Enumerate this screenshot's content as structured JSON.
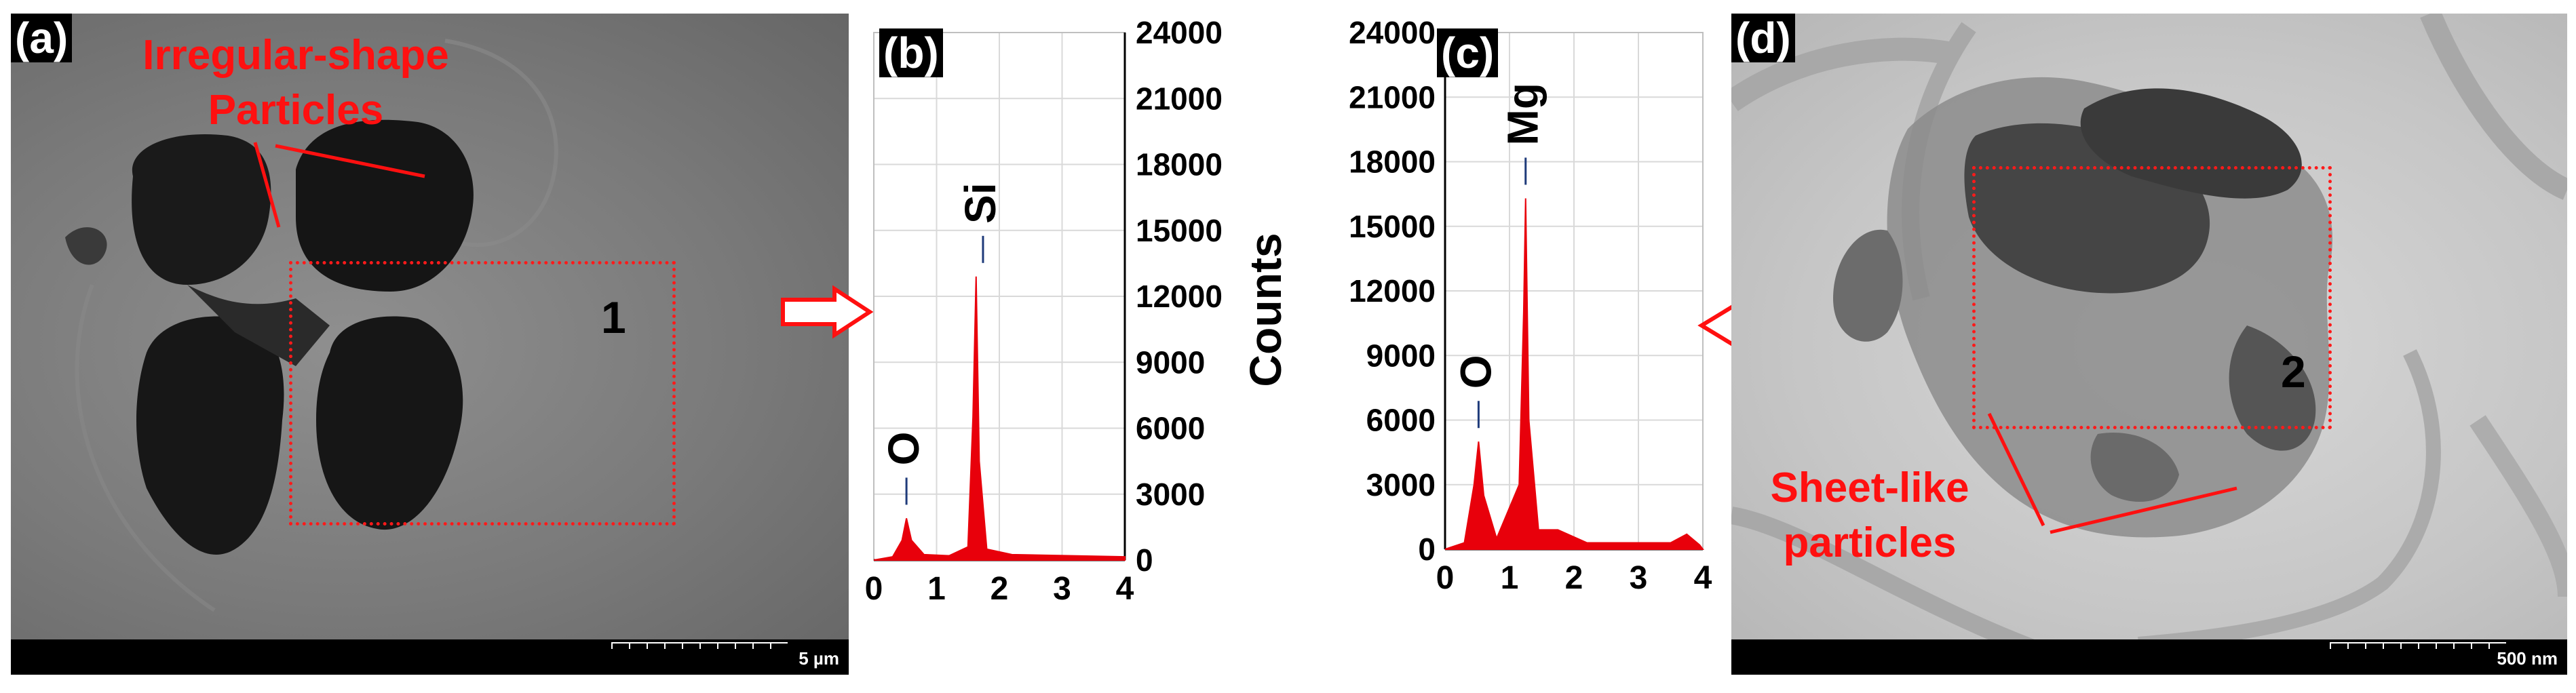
{
  "panel_a": {
    "letter": "(a)",
    "annotation_line1": "Irregular-shape",
    "annotation_line2": "Particles",
    "region_number": "1",
    "scale_bar": "5 µm"
  },
  "panel_d": {
    "letter": "(d)",
    "annotation_line1": "Sheet-like",
    "annotation_line2": "particles",
    "region_number": "2",
    "scale_bar": "500 nm"
  },
  "colors": {
    "spectrum": "#e8000b",
    "annotation": "#ff1010",
    "grid": "#d9d9d9"
  },
  "chart_data": [
    {
      "panel": "(b)",
      "type": "area",
      "ylabel": "Counts",
      "y_axis_side": "right",
      "xlim": [
        0,
        4
      ],
      "ylim": [
        0,
        24000
      ],
      "xticks": [
        0,
        1,
        2,
        3,
        4
      ],
      "yticks": [
        0,
        3000,
        6000,
        9000,
        12000,
        15000,
        18000,
        21000,
        24000
      ],
      "grid": true,
      "series": [
        {
          "x": [
            0,
            0.3,
            0.45,
            0.52,
            0.6,
            0.8,
            1.2,
            1.5,
            1.58,
            1.63,
            1.68,
            1.8,
            2.2,
            4
          ],
          "y": [
            0,
            150,
            900,
            1900,
            900,
            250,
            200,
            600,
            6500,
            12900,
            4500,
            500,
            250,
            150
          ]
        }
      ],
      "peak_labels": [
        {
          "text": "O",
          "x": 0.52
        },
        {
          "text": "Si",
          "x": 1.74
        }
      ]
    },
    {
      "panel": "(c)",
      "type": "area",
      "ylabel": "",
      "y_axis_side": "left",
      "xlim": [
        0,
        4
      ],
      "ylim": [
        0,
        24000
      ],
      "xticks": [
        0,
        1,
        2,
        3,
        4
      ],
      "yticks": [
        0,
        3000,
        6000,
        9000,
        12000,
        15000,
        18000,
        21000,
        24000
      ],
      "grid": true,
      "series": [
        {
          "x": [
            0,
            0.3,
            0.45,
            0.52,
            0.6,
            0.8,
            1.15,
            1.22,
            1.25,
            1.3,
            1.45,
            1.75,
            2.2,
            3.5,
            3.75,
            3.95,
            4
          ],
          "y": [
            0,
            300,
            3000,
            5000,
            2500,
            500,
            3000,
            11000,
            16300,
            6000,
            900,
            900,
            300,
            300,
            700,
            200,
            0
          ]
        }
      ],
      "peak_labels": [
        {
          "text": "O",
          "x": 0.52
        },
        {
          "text": "Mg",
          "x": 1.25
        }
      ]
    }
  ]
}
